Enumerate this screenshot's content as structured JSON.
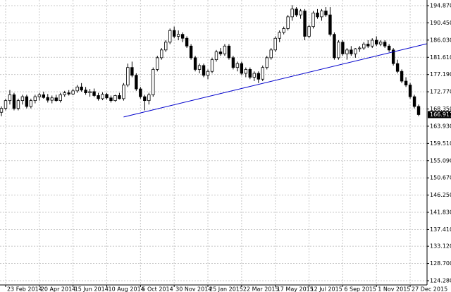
{
  "chart_data": {
    "type": "candlestick",
    "categories": [
      null,
      "23 Feb 2014",
      null,
      null,
      null,
      null,
      null,
      null,
      null,
      "20 Apr 2014",
      null,
      null,
      null,
      null,
      null,
      null,
      null,
      "15 Jun 2014",
      null,
      null,
      null,
      null,
      null,
      null,
      null,
      "10 Aug 2014",
      null,
      null,
      null,
      null,
      null,
      null,
      null,
      "5 Oct 2014",
      null,
      null,
      null,
      null,
      null,
      null,
      null,
      "30 Nov 2014",
      null,
      null,
      null,
      null,
      null,
      null,
      null,
      "25 Jan 2015",
      null,
      null,
      null,
      null,
      null,
      null,
      null,
      "22 Mar 2015",
      null,
      null,
      null,
      null,
      null,
      null,
      null,
      "17 May 2015",
      null,
      null,
      null,
      null,
      null,
      null,
      null,
      "12 Jul 2015",
      null,
      null,
      null,
      null,
      null,
      null,
      null,
      "6 Sep 2015",
      null,
      null,
      null,
      null,
      null,
      null,
      null,
      "1 Nov 2015",
      null,
      null,
      null,
      null,
      null,
      null,
      null,
      "27 Dec 2015",
      null,
      null
    ],
    "open": [
      167.5,
      168.5,
      170.5,
      172,
      168.5,
      170.5,
      171.5,
      169,
      170.5,
      171.5,
      172,
      171.3,
      170.6,
      171.2,
      170.5,
      172,
      172.5,
      172.2,
      173,
      174,
      173.2,
      172.5,
      172.8,
      171.8,
      171,
      172.1,
      171.2,
      170.5,
      171.8,
      171,
      174.5,
      179,
      177,
      173.5,
      171.5,
      170.5,
      172,
      178.5,
      181.5,
      183.5,
      185.5,
      188.5,
      187,
      187.5,
      186.5,
      184.5,
      181.5,
      178.5,
      179.5,
      177,
      178,
      181,
      183,
      182.5,
      184.5,
      181.5,
      179,
      180,
      177.5,
      178.5,
      176.5,
      177.5,
      176,
      179,
      181.5,
      183.5,
      186.5,
      188,
      189,
      192,
      194,
      192.5,
      193.5,
      187,
      189.5,
      193,
      192,
      193.5,
      192.5,
      187.5,
      181.5,
      185.5,
      182.5,
      183.5,
      182.5,
      183.8,
      184,
      185,
      184.5,
      186,
      185,
      185.5,
      184.5,
      183.5,
      180,
      178,
      175.5,
      174.5,
      171.5,
      169
    ],
    "high": [
      169,
      171,
      173.2,
      172.5,
      171,
      172,
      172,
      171,
      172,
      172.5,
      172.8,
      172.2,
      171.8,
      172,
      172.5,
      173,
      173.2,
      173.5,
      174.5,
      175,
      174,
      173.5,
      173.6,
      172.5,
      172.6,
      172.5,
      171.8,
      172,
      172.5,
      175,
      180,
      180.5,
      177.5,
      174,
      172,
      172.5,
      179,
      182,
      184,
      186,
      189,
      189.5,
      188.5,
      188,
      187,
      185,
      182,
      180,
      180,
      178.5,
      181.5,
      183.5,
      184,
      185,
      185,
      182,
      180.5,
      180.5,
      179,
      179,
      178,
      178,
      179.5,
      182,
      184,
      187,
      188.5,
      189.5,
      192.5,
      195,
      194.5,
      194,
      194,
      190,
      193.5,
      194,
      194,
      194.5,
      194.5,
      188,
      186,
      186,
      184,
      184.5,
      184,
      184.5,
      185.5,
      186,
      186.5,
      187,
      186,
      186,
      185,
      184,
      181,
      178.5,
      176.5,
      175,
      172,
      169.5
    ],
    "low": [
      166.5,
      168,
      169.5,
      168,
      168,
      169.5,
      168.5,
      168.5,
      169.8,
      170.5,
      171,
      170,
      169.8,
      170.2,
      170,
      171.5,
      171.8,
      171.9,
      172.5,
      172.8,
      172,
      171.5,
      171.4,
      170.5,
      170.6,
      170.8,
      170,
      170.2,
      170.8,
      170.5,
      174,
      176.5,
      173,
      171,
      168,
      169.5,
      171.5,
      178,
      181,
      183,
      185,
      186.5,
      186,
      185.5,
      184,
      181,
      178,
      177.5,
      176.5,
      176,
      177.5,
      180.5,
      182,
      182,
      181,
      178.5,
      178,
      177,
      176.5,
      176,
      175.5,
      175,
      175.5,
      178.5,
      181,
      183,
      185.5,
      187.5,
      188.5,
      191,
      192,
      191.5,
      186,
      186.5,
      189,
      191.5,
      191,
      192,
      187,
      181,
      181,
      182,
      181,
      182,
      181.5,
      183,
      183.5,
      184,
      184,
      184.5,
      184.5,
      184,
      183,
      179.5,
      177.5,
      175,
      174,
      171,
      168.5,
      166.5
    ],
    "close": [
      168.5,
      170.5,
      172,
      168.5,
      170.5,
      171.5,
      169,
      170.5,
      171.5,
      172,
      171.3,
      170.6,
      171.2,
      170.5,
      172,
      172.5,
      172.2,
      173,
      174,
      173.2,
      172.5,
      172.8,
      171.8,
      171,
      172.1,
      171.2,
      170.5,
      171.8,
      171,
      174.5,
      179,
      177,
      173.5,
      171.5,
      170.5,
      172,
      178.5,
      181.5,
      183.5,
      185.5,
      188.5,
      187,
      187.5,
      186.5,
      184.5,
      181.5,
      178.5,
      179.5,
      177,
      178,
      181,
      183,
      182.5,
      184.5,
      181.5,
      179,
      180,
      177.5,
      178.5,
      176.5,
      177.5,
      176,
      179,
      181.5,
      183.5,
      186.5,
      188,
      189,
      192,
      194,
      192.5,
      193.5,
      187,
      189.5,
      193,
      192,
      193.5,
      192.5,
      187.5,
      181.5,
      185.5,
      182.5,
      183.5,
      182.5,
      183.8,
      184,
      185,
      184.5,
      186,
      185,
      185.5,
      184.5,
      183.5,
      180,
      178,
      175.5,
      174.5,
      171.5,
      169,
      166.911
    ],
    "ylim": [
      123.19,
      196.32
    ],
    "yticks": [
      {
        "value": 124.28,
        "label": "124.280"
      },
      {
        "value": 128.7,
        "label": "128.700"
      },
      {
        "value": 133.12,
        "label": "133.120"
      },
      {
        "value": 137.41,
        "label": "137.410"
      },
      {
        "value": 141.83,
        "label": "141.830"
      },
      {
        "value": 146.25,
        "label": "146.250"
      },
      {
        "value": 150.67,
        "label": "150.670"
      },
      {
        "value": 155.09,
        "label": "155.090"
      },
      {
        "value": 159.51,
        "label": "159.510"
      },
      {
        "value": 163.93,
        "label": "163.930"
      },
      {
        "value": 168.35,
        "label": "168.350"
      },
      {
        "value": 172.77,
        "label": "172.770"
      },
      {
        "value": 177.19,
        "label": "177.190"
      },
      {
        "value": 181.61,
        "label": "181.610"
      },
      {
        "value": 186.03,
        "label": "186.030"
      },
      {
        "value": 190.45,
        "label": "190.450"
      },
      {
        "value": 194.87,
        "label": "194.870"
      }
    ],
    "last_price": 166.911,
    "trendline": {
      "x": [
        29,
        101
      ],
      "y": [
        166.3,
        185.1
      ],
      "color": "#0000cc"
    },
    "grid": true
  }
}
